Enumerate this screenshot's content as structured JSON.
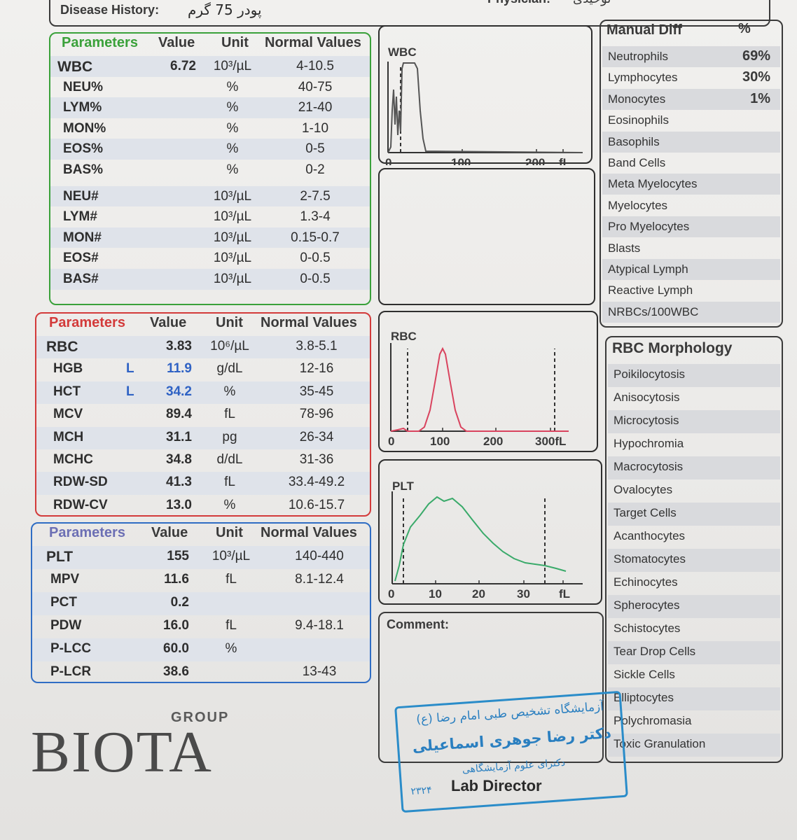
{
  "header": {
    "disease_history_label": "Disease History:",
    "disease_history_value": "پودر 75 گرم",
    "physician_label": "Physician:",
    "physician_value": "توحیدی"
  },
  "wbc_panel": {
    "headers": [
      "Parameters",
      "Value",
      "Unit",
      "Normal Values"
    ],
    "rows": [
      {
        "name": "WBC",
        "flag": "",
        "value": "6.72",
        "unit": "10³/µL",
        "normal": "4-10.5"
      },
      {
        "name": "NEU%",
        "flag": "",
        "value": "",
        "unit": "%",
        "normal": "40-75"
      },
      {
        "name": "LYM%",
        "flag": "",
        "value": "",
        "unit": "%",
        "normal": "21-40"
      },
      {
        "name": "MON%",
        "flag": "",
        "value": "",
        "unit": "%",
        "normal": "1-10"
      },
      {
        "name": "EOS%",
        "flag": "",
        "value": "",
        "unit": "%",
        "normal": "0-5"
      },
      {
        "name": "BAS%",
        "flag": "",
        "value": "",
        "unit": "%",
        "normal": "0-2"
      },
      {
        "name": "NEU#",
        "flag": "",
        "value": "",
        "unit": "10³/µL",
        "normal": "2-7.5"
      },
      {
        "name": "LYM#",
        "flag": "",
        "value": "",
        "unit": "10³/µL",
        "normal": "1.3-4"
      },
      {
        "name": "MON#",
        "flag": "",
        "value": "",
        "unit": "10³/µL",
        "normal": "0.15-0.7"
      },
      {
        "name": "EOS#",
        "flag": "",
        "value": "",
        "unit": "10³/µL",
        "normal": "0-0.5"
      },
      {
        "name": "BAS#",
        "flag": "",
        "value": "",
        "unit": "10³/µL",
        "normal": "0-0.5"
      }
    ]
  },
  "rbc_panel": {
    "headers": [
      "Parameters",
      "Value",
      "Unit",
      "Normal Values"
    ],
    "rows": [
      {
        "name": "RBC",
        "flag": "",
        "value": "3.83",
        "unit": "10⁶/µL",
        "normal": "3.8-5.1"
      },
      {
        "name": "HGB",
        "flag": "L",
        "value": "11.9",
        "unit": "g/dL",
        "normal": "12-16"
      },
      {
        "name": "HCT",
        "flag": "L",
        "value": "34.2",
        "unit": "%",
        "normal": "35-45"
      },
      {
        "name": "MCV",
        "flag": "",
        "value": "89.4",
        "unit": "fL",
        "normal": "78-96"
      },
      {
        "name": "MCH",
        "flag": "",
        "value": "31.1",
        "unit": "pg",
        "normal": "26-34"
      },
      {
        "name": "MCHC",
        "flag": "",
        "value": "34.8",
        "unit": "d/dL",
        "normal": "31-36"
      },
      {
        "name": "RDW-SD",
        "flag": "",
        "value": "41.3",
        "unit": "fL",
        "normal": "33.4-49.2"
      },
      {
        "name": "RDW-CV",
        "flag": "",
        "value": "13.0",
        "unit": "%",
        "normal": "10.6-15.7"
      }
    ]
  },
  "plt_panel": {
    "headers": [
      "Parameters",
      "Value",
      "Unit",
      "Normal Values"
    ],
    "rows": [
      {
        "name": "PLT",
        "flag": "",
        "value": "155",
        "unit": "10³/µL",
        "normal": "140-440"
      },
      {
        "name": "MPV",
        "flag": "",
        "value": "11.6",
        "unit": "fL",
        "normal": "8.1-12.4"
      },
      {
        "name": "PCT",
        "flag": "",
        "value": "0.2",
        "unit": "",
        "normal": ""
      },
      {
        "name": "PDW",
        "flag": "",
        "value": "16.0",
        "unit": "fL",
        "normal": "9.4-18.1"
      },
      {
        "name": "P-LCC",
        "flag": "",
        "value": "60.0",
        "unit": "%",
        "normal": ""
      },
      {
        "name": "P-LCR",
        "flag": "",
        "value": "38.6",
        "unit": "",
        "normal": "13-43"
      }
    ]
  },
  "histograms": {
    "wbc": {
      "title": "WBC",
      "ticks": [
        "0",
        "100",
        "200",
        "fL"
      ],
      "color": "#555555"
    },
    "rbc": {
      "title": "RBC",
      "ticks": [
        "0",
        "100",
        "200",
        "300fL"
      ],
      "color": "#d9435e"
    },
    "plt": {
      "title": "PLT",
      "ticks": [
        "0",
        "10",
        "20",
        "30",
        "fL"
      ],
      "color": "#3aaa6a"
    }
  },
  "manual_diff": {
    "title": "Manual Diff",
    "pct_header": "%",
    "items": [
      {
        "label": "Neutrophils",
        "value": "69%"
      },
      {
        "label": "Lymphocytes",
        "value": "30%"
      },
      {
        "label": "Monocytes",
        "value": "1%"
      },
      {
        "label": "Eosinophils",
        "value": ""
      },
      {
        "label": "Basophils",
        "value": ""
      },
      {
        "label": "Band Cells",
        "value": ""
      },
      {
        "label": "Meta Myelocytes",
        "value": ""
      },
      {
        "label": "Myelocytes",
        "value": ""
      },
      {
        "label": "Pro Myelocytes",
        "value": ""
      },
      {
        "label": "Blasts",
        "value": ""
      },
      {
        "label": "Atypical Lymph",
        "value": ""
      },
      {
        "label": "Reactive Lymph",
        "value": ""
      },
      {
        "label": "NRBCs/100WBC",
        "value": ""
      }
    ]
  },
  "rbc_morphology": {
    "title": "RBC Morphology",
    "items": [
      "Poikilocytosis",
      "Anisocytosis",
      "Microcytosis",
      "Hypochromia",
      "Macrocytosis",
      "Ovalocytes",
      "Target Cells",
      "Acanthocytes",
      "Stomatocytes",
      "Echinocytes",
      "Spherocytes",
      "Schistocytes",
      "Tear Drop Cells",
      "Sickle Cells",
      "Elliptocytes",
      "Polychromasia",
      "Toxic Granulation"
    ]
  },
  "comment": {
    "label": "Comment:"
  },
  "stamp": {
    "line1": "آزمایشگاه تشخیص طبی امام رضا (ع)",
    "line2": "دکتر رضا جوهری اسماعیلی",
    "line3": "دکترای علوم آزمایشگاهی",
    "line4": "۲۳۲۴"
  },
  "footer": {
    "lab_director": "Lab Director",
    "logo_word": "BIOTA",
    "logo_group": "GROUP"
  }
}
